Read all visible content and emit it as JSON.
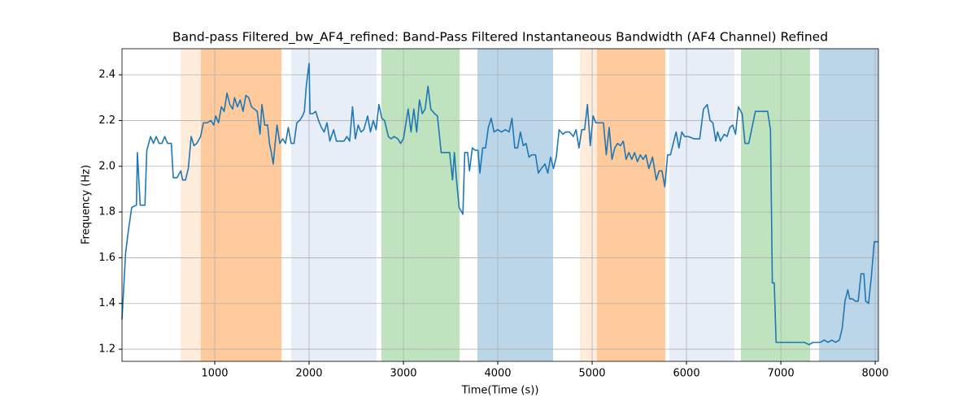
{
  "chart_data": {
    "type": "line",
    "title": "Band-pass Filtered_bw_AF4_refined: Band-Pass Filtered Instantaneous Bandwidth (AF4 Channel) Refined",
    "xlabel": "Time(Time (s))",
    "ylabel": "Frequency (Hz)",
    "xlim": [
      17,
      8034
    ],
    "ylim": [
      1.147,
      2.514
    ],
    "xticks": [
      1000,
      2000,
      3000,
      4000,
      5000,
      6000,
      7000,
      8000
    ],
    "yticks": [
      1.2,
      1.4,
      1.6,
      1.8,
      {
        "value": 2,
        "label": "2.0"
      },
      2.2,
      2.4
    ],
    "grid": true,
    "spans": [
      {
        "x0": 638,
        "x1": 1707,
        "color": "#ff7f0e",
        "opacity": 0.15
      },
      {
        "x0": 853,
        "x1": 1707,
        "color": "#ff7f0e",
        "opacity": 0.3
      },
      {
        "x0": 1810,
        "x1": 2715,
        "color": "#aec7e8",
        "opacity": 0.3
      },
      {
        "x0": 2767,
        "x1": 3595,
        "color": "#2ca02c",
        "opacity": 0.3
      },
      {
        "x0": 3784,
        "x1": 4586,
        "color": "#1f77b4",
        "opacity": 0.3
      },
      {
        "x0": 4870,
        "x1": 5775,
        "color": "#ff7f0e",
        "opacity": 0.15
      },
      {
        "x0": 5051,
        "x1": 5775,
        "color": "#ff7f0e",
        "opacity": 0.3
      },
      {
        "x0": 5819,
        "x1": 6508,
        "color": "#aec7e8",
        "opacity": 0.3
      },
      {
        "x0": 6577,
        "x1": 7310,
        "color": "#2ca02c",
        "opacity": 0.3
      },
      {
        "x0": 7405,
        "x1": 8034,
        "color": "#1f77b4",
        "opacity": 0.3
      }
    ],
    "series": [
      {
        "color": "#1f77b4",
        "x": [
          17,
          55,
          85,
          120,
          170,
          180,
          210,
          260,
          280,
          320,
          350,
          380,
          410,
          440,
          470,
          500,
          540,
          560,
          600,
          640,
          660,
          690,
          720,
          750,
          780,
          810,
          850,
          880,
          920,
          960,
          990,
          1010,
          1040,
          1070,
          1100,
          1130,
          1160,
          1190,
          1210,
          1240,
          1270,
          1300,
          1330,
          1360,
          1390,
          1420,
          1450,
          1480,
          1500,
          1530,
          1560,
          1580,
          1600,
          1620,
          1640,
          1660,
          1690,
          1720,
          1750,
          1780,
          1810,
          1840,
          1870,
          1900,
          1930,
          1950,
          1970,
          2000,
          2010,
          2040,
          2070,
          2100,
          2130,
          2160,
          2190,
          2220,
          2260,
          2290,
          2330,
          2370,
          2400,
          2430,
          2460,
          2490,
          2520,
          2550,
          2580,
          2620,
          2650,
          2680,
          2710,
          2740,
          2770,
          2800,
          2840,
          2870,
          2900,
          2940,
          2970,
          3000,
          3050,
          3080,
          3110,
          3140,
          3170,
          3200,
          3230,
          3260,
          3290,
          3330,
          3360,
          3400,
          3450,
          3490,
          3520,
          3540,
          3560,
          3590,
          3630,
          3650,
          3680,
          3700,
          3730,
          3760,
          3790,
          3810,
          3840,
          3870,
          3900,
          3930,
          3960,
          4000,
          4040,
          4080,
          4120,
          4150,
          4180,
          4210,
          4240,
          4270,
          4300,
          4330,
          4360,
          4400,
          4430,
          4460,
          4500,
          4530,
          4560,
          4590,
          4620,
          4650,
          4690,
          4720,
          4760,
          4800,
          4830,
          4860,
          4890,
          4920,
          4950,
          4980,
          5010,
          5040,
          5080,
          5120,
          5150,
          5180,
          5210,
          5240,
          5270,
          5300,
          5330,
          5360,
          5390,
          5420,
          5450,
          5480,
          5510,
          5540,
          5570,
          5600,
          5640,
          5680,
          5710,
          5740,
          5770,
          5800,
          5830,
          5860,
          5890,
          5920,
          5950,
          5980,
          6020,
          6080,
          6140,
          6180,
          6220,
          6250,
          6280,
          6310,
          6330,
          6360,
          6400,
          6430,
          6460,
          6490,
          6520,
          6550,
          6590,
          6620,
          6660,
          6700,
          6730,
          6800,
          6860,
          6890,
          6910,
          6930,
          6950,
          7000,
          7100,
          7200,
          7250,
          7300,
          7340,
          7380,
          7420,
          7460,
          7500,
          7540,
          7580,
          7620,
          7650,
          7680,
          7710,
          7730,
          7760,
          7790,
          7820,
          7850,
          7880,
          7900,
          7930,
          7960,
          7990,
          8034
        ],
        "values": [
          1.33,
          1.62,
          1.72,
          1.82,
          1.83,
          2.06,
          1.83,
          1.83,
          2.07,
          2.13,
          2.1,
          2.13,
          2.1,
          2.1,
          2.13,
          2.1,
          2.1,
          1.95,
          1.95,
          1.98,
          1.94,
          1.94,
          1.99,
          2.13,
          2.09,
          2.1,
          2.13,
          2.19,
          2.19,
          2.2,
          2.18,
          2.22,
          2.19,
          2.26,
          2.24,
          2.32,
          2.27,
          2.25,
          2.3,
          2.26,
          2.29,
          2.24,
          2.31,
          2.3,
          2.26,
          2.25,
          2.24,
          2.14,
          2.27,
          2.18,
          2.18,
          2.1,
          2.06,
          2.01,
          2.1,
          2.18,
          2.1,
          2.12,
          2.1,
          2.17,
          2.1,
          2.1,
          2.19,
          2.2,
          2.22,
          2.24,
          2.35,
          2.45,
          2.23,
          2.23,
          2.24,
          2.2,
          2.17,
          2.15,
          2.19,
          2.11,
          2.16,
          2.11,
          2.11,
          2.11,
          2.13,
          2.11,
          2.26,
          2.12,
          2.18,
          2.15,
          2.16,
          2.22,
          2.15,
          2.2,
          2.16,
          2.27,
          2.21,
          2.2,
          2.13,
          2.12,
          2.13,
          2.12,
          2.1,
          2.12,
          2.25,
          2.15,
          2.25,
          2.15,
          2.29,
          2.23,
          2.25,
          2.35,
          2.25,
          2.23,
          2.22,
          2.06,
          2.06,
          2.06,
          1.94,
          2.06,
          1.95,
          1.82,
          1.79,
          2.06,
          2.06,
          1.98,
          2.08,
          2.07,
          2.07,
          1.97,
          2.08,
          2.08,
          2.17,
          2.21,
          2.15,
          2.16,
          2.15,
          2.16,
          2.15,
          2.21,
          2.08,
          2.08,
          2.15,
          2.09,
          2.1,
          2.04,
          2.05,
          2.05,
          1.97,
          1.99,
          2.01,
          1.97,
          2.04,
          1.99,
          2.04,
          2.16,
          2.14,
          2.15,
          2.15,
          2.13,
          2.16,
          2.08,
          2.16,
          2.16,
          2.27,
          2.09,
          2.22,
          2.19,
          2.19,
          2.19,
          2.05,
          2.17,
          2.03,
          2.08,
          2.1,
          2.09,
          2.11,
          2.03,
          2.06,
          2.03,
          2.06,
          2.02,
          2.05,
          2.03,
          2.05,
          1.99,
          2.04,
          1.94,
          1.98,
          1.98,
          1.91,
          2.05,
          2.05,
          2.1,
          2.15,
          2.08,
          2.15,
          2.13,
          2.13,
          2.12,
          2.12,
          2.25,
          2.27,
          2.2,
          2.19,
          2.11,
          2.15,
          2.11,
          2.14,
          2.13,
          2.17,
          2.18,
          2.14,
          2.26,
          2.23,
          2.1,
          2.1,
          2.18,
          2.24,
          2.24,
          2.24,
          2.16,
          1.49,
          1.49,
          1.23,
          1.23,
          1.23,
          1.23,
          1.23,
          1.22,
          1.23,
          1.23,
          1.23,
          1.24,
          1.23,
          1.24,
          1.23,
          1.24,
          1.29,
          1.41,
          1.46,
          1.42,
          1.42,
          1.41,
          1.41,
          1.53,
          1.53,
          1.41,
          1.4,
          1.52,
          1.67,
          1.67
        ]
      }
    ]
  }
}
